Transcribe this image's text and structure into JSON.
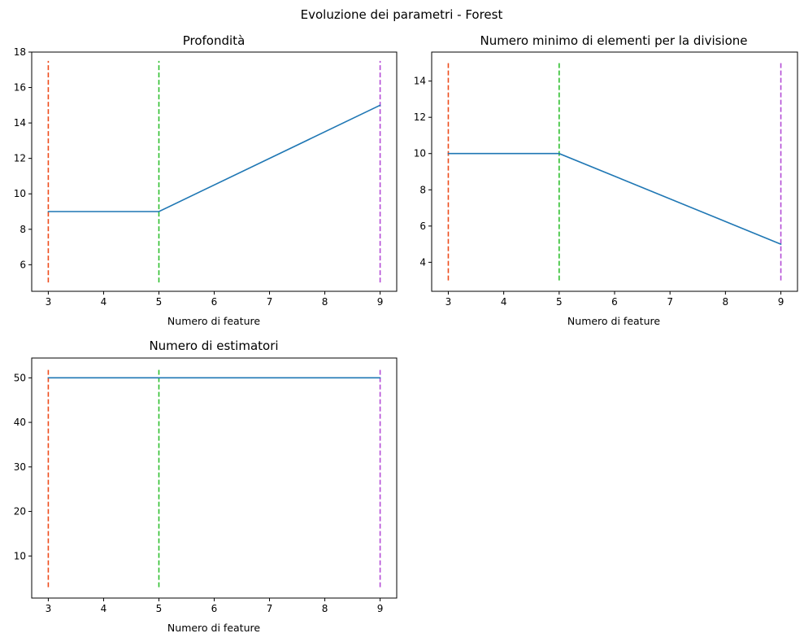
{
  "figure": {
    "suptitle": "Evoluzione dei parametri - Forest"
  },
  "chart_data": [
    {
      "type": "line",
      "title": "Profondità",
      "xlabel": "Numero di feature",
      "ylabel": "",
      "xlim": [
        2.7,
        9.3
      ],
      "ylim": [
        4.5,
        18.0
      ],
      "xticks": [
        3,
        4,
        5,
        6,
        7,
        8,
        9
      ],
      "yticks": [
        6,
        8,
        10,
        12,
        14,
        16,
        18
      ],
      "x": [
        3,
        5,
        9
      ],
      "series": [
        {
          "values": [
            9,
            9,
            15
          ],
          "color": "#1f77b4"
        }
      ],
      "vlines": [
        {
          "x": 3,
          "ymin": 5,
          "ymax": 17.5,
          "color": "#ee4b1b"
        },
        {
          "x": 5,
          "ymin": 5,
          "ymax": 17.5,
          "color": "#2fbf2f"
        },
        {
          "x": 9,
          "ymin": 5,
          "ymax": 17.5,
          "color": "#b44cd6"
        }
      ],
      "grid": false
    },
    {
      "type": "line",
      "title": "Numero minimo di elementi per la divisione",
      "xlabel": "Numero di feature",
      "ylabel": "",
      "xlim": [
        2.7,
        9.3
      ],
      "ylim": [
        2.4,
        15.6
      ],
      "xticks": [
        3,
        4,
        5,
        6,
        7,
        8,
        9
      ],
      "yticks": [
        4,
        6,
        8,
        10,
        12,
        14
      ],
      "x": [
        3,
        5,
        9
      ],
      "series": [
        {
          "values": [
            10,
            10,
            5
          ],
          "color": "#1f77b4"
        }
      ],
      "vlines": [
        {
          "x": 3,
          "ymin": 3,
          "ymax": 15,
          "color": "#ee4b1b"
        },
        {
          "x": 5,
          "ymin": 3,
          "ymax": 15,
          "color": "#2fbf2f"
        },
        {
          "x": 9,
          "ymin": 3,
          "ymax": 15,
          "color": "#b44cd6"
        }
      ],
      "grid": false
    },
    {
      "type": "line",
      "title": "Numero di estimatori",
      "xlabel": "Numero di feature",
      "ylabel": "",
      "xlim": [
        2.7,
        9.3
      ],
      "ylim": [
        0.55,
        54.45
      ],
      "xticks": [
        3,
        4,
        5,
        6,
        7,
        8,
        9
      ],
      "yticks": [
        10,
        20,
        30,
        40,
        50
      ],
      "x": [
        3,
        5,
        9
      ],
      "series": [
        {
          "values": [
            50,
            50,
            50
          ],
          "color": "#1f77b4"
        }
      ],
      "vlines": [
        {
          "x": 3,
          "ymin": 3,
          "ymax": 52,
          "color": "#ee4b1b"
        },
        {
          "x": 5,
          "ymin": 3,
          "ymax": 52,
          "color": "#2fbf2f"
        },
        {
          "x": 9,
          "ymin": 3,
          "ymax": 52,
          "color": "#b44cd6"
        }
      ],
      "grid": false
    }
  ]
}
